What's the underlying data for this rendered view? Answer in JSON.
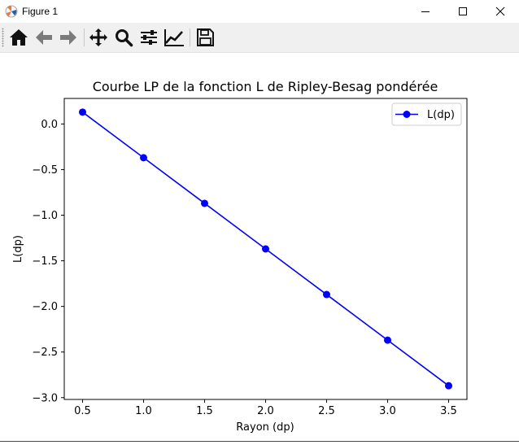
{
  "window": {
    "title": "Figure 1"
  },
  "toolbar": {
    "tools": [
      "home-icon",
      "back-icon",
      "forward-icon",
      "pan-icon",
      "zoom-icon",
      "configure-subplots-icon",
      "edit-axis-icon",
      "save-icon"
    ]
  },
  "chart_data": {
    "type": "line",
    "title": "Courbe LP de la fonction L de Ripley-Besag pondérée",
    "xlabel": "Rayon (dp)",
    "ylabel": "L(dp)",
    "x": [
      0.5,
      1.0,
      1.5,
      2.0,
      2.5,
      3.0,
      3.5
    ],
    "series": [
      {
        "name": "L(dp)",
        "color": "#0000ff",
        "marker": "circle",
        "values": [
          0.13,
          -0.37,
          -0.87,
          -1.37,
          -1.87,
          -2.37,
          -2.87
        ]
      }
    ],
    "xlim": [
      0.35,
      3.65
    ],
    "ylim": [
      -3.02,
      0.28
    ],
    "xticks": [
      "0.5",
      "1.0",
      "1.5",
      "2.0",
      "2.5",
      "3.0",
      "3.5"
    ],
    "xtick_values": [
      0.5,
      1.0,
      1.5,
      2.0,
      2.5,
      3.0,
      3.5
    ],
    "yticks": [
      "0.0",
      "−0.5",
      "−1.0",
      "−1.5",
      "−2.0",
      "−2.5",
      "−3.0"
    ],
    "ytick_values": [
      0.0,
      -0.5,
      -1.0,
      -1.5,
      -2.0,
      -2.5,
      -3.0
    ],
    "grid": false,
    "legend_position": "top-right"
  }
}
